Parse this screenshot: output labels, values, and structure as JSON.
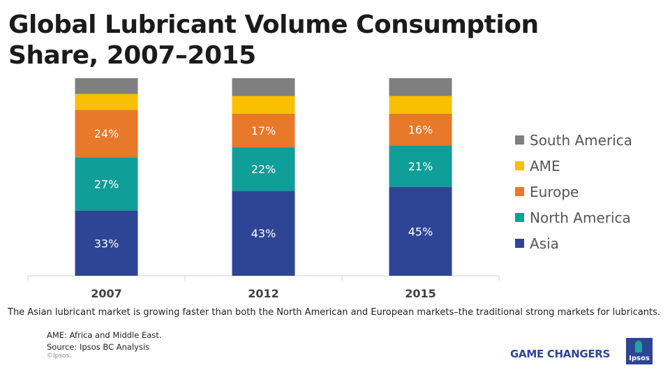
{
  "title": "Global Lubricant Volume Consumption Share, 2007–2015",
  "chart_data": {
    "type": "bar",
    "stacked": true,
    "title": "Global Lubricant Volume Consumption Share, 2007–2015",
    "categories": [
      "2007",
      "2012",
      "2015"
    ],
    "ylim": [
      0,
      100
    ],
    "series": [
      {
        "name": "Asia",
        "color": "#2e4595",
        "values": [
          33,
          43,
          45
        ],
        "labels": [
          "33%",
          "43%",
          "45%"
        ]
      },
      {
        "name": "North America",
        "color": "#0f9e98",
        "values": [
          27,
          22,
          21
        ],
        "labels": [
          "27%",
          "22%",
          "21%"
        ]
      },
      {
        "name": "Europe",
        "color": "#e8782a",
        "values": [
          24,
          17,
          16
        ],
        "labels": [
          "24%",
          "17%",
          "16%"
        ]
      },
      {
        "name": "AME",
        "color": "#f8c000",
        "values": [
          8,
          9,
          9
        ],
        "labels": [
          "",
          "",
          ""
        ]
      },
      {
        "name": "South America",
        "color": "#7f7f7f",
        "values": [
          8,
          9,
          9
        ],
        "labels": [
          "",
          "",
          ""
        ]
      }
    ],
    "legend_order": [
      "South America",
      "AME",
      "Europe",
      "North America",
      "Asia"
    ],
    "legend_position": "right"
  },
  "caption": "The Asian lubricant market is growing faster than both the North  American and European markets–the traditional strong markets for lubricants.",
  "notes": {
    "ame": "AME: Africa and Middle East.",
    "source": "Source: Ipsos BC Analysis"
  },
  "copyright": "©Ipsos.",
  "brand": {
    "tagline": "GAME CHANGERS",
    "logo_text": "Ipsos",
    "colors": {
      "primary": "#2e4595",
      "accent": "#1fa6a0"
    }
  }
}
